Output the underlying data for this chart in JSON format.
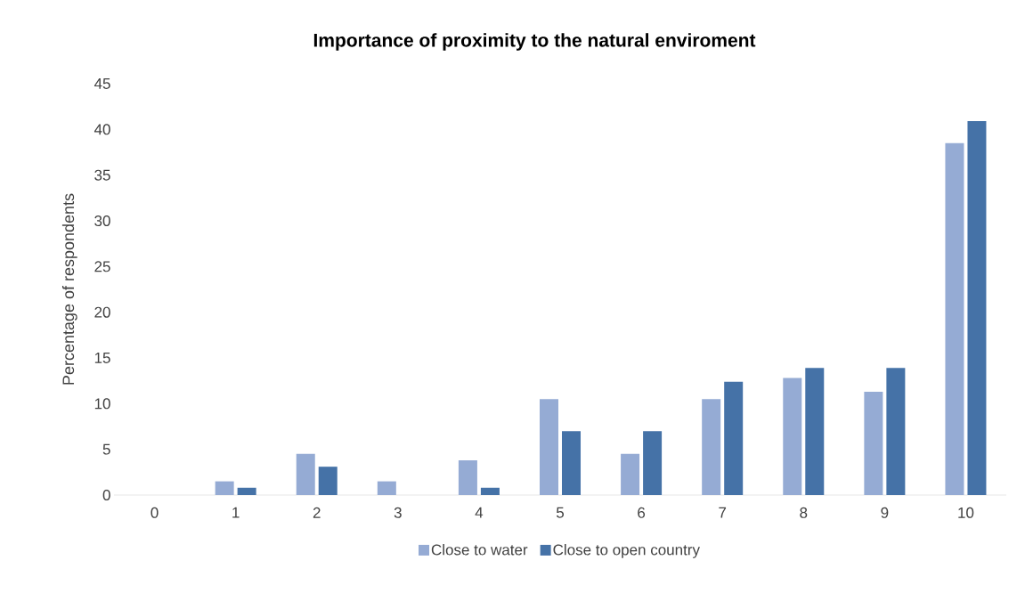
{
  "chart_data": {
    "type": "bar",
    "title": "Importance of proximity to the natural enviroment",
    "ylabel": "Percentage of respondents",
    "categories": [
      "0",
      "1",
      "2",
      "3",
      "4",
      "5",
      "6",
      "7",
      "8",
      "9",
      "10"
    ],
    "series": [
      {
        "name": "Close to water",
        "color": "#95abd4",
        "values": [
          0,
          1.5,
          4.5,
          1.5,
          3.8,
          10.5,
          4.5,
          10.5,
          12.8,
          11.3,
          38.5
        ]
      },
      {
        "name": "Close to open country",
        "color": "#4572a7",
        "values": [
          0,
          0.8,
          3.1,
          0,
          0.8,
          7.0,
          7.0,
          12.4,
          13.9,
          13.9,
          40.9
        ]
      }
    ],
    "ylim": [
      0,
      45
    ],
    "yticks": [
      0,
      5,
      10,
      15,
      20,
      25,
      30,
      35,
      40,
      45
    ],
    "legend": "bottom"
  }
}
